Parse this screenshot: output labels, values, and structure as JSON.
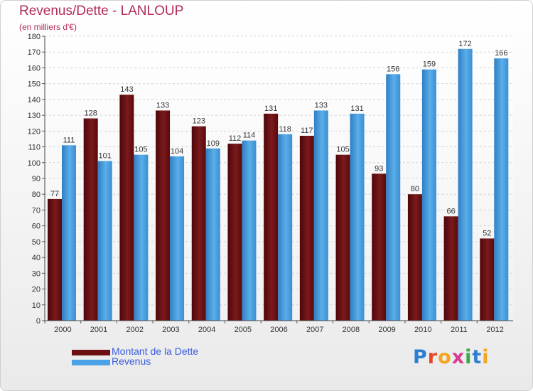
{
  "header": {
    "title": "Revenus/Dette - LANLOUP",
    "subtitle": "(en milliers d'€)"
  },
  "legend": [
    {
      "label": "Montant de la Dette",
      "color": "#6b0f12"
    },
    {
      "label": "Revenus",
      "color": "#4aa3e6"
    }
  ],
  "logo": {
    "text": "Proxiti",
    "letter_colors": [
      "#2f7fd0",
      "#e8462b",
      "#f4a41e",
      "#d93b8f",
      "#39a848",
      "#2f7fd0",
      "#f4a41e"
    ]
  },
  "chart_data": {
    "type": "bar",
    "title": "Revenus/Dette - LANLOUP",
    "subtitle": "(en milliers d'€)",
    "categories": [
      "2000",
      "2001",
      "2002",
      "2003",
      "2004",
      "2005",
      "2006",
      "2007",
      "2008",
      "2009",
      "2010",
      "2011",
      "2012"
    ],
    "series": [
      {
        "name": "Montant de la Dette",
        "color": "#6b0f12",
        "values": [
          77,
          128,
          143,
          133,
          123,
          112,
          131,
          117,
          105,
          93,
          80,
          66,
          52
        ]
      },
      {
        "name": "Revenus",
        "color": "#4aa3e6",
        "values": [
          111,
          101,
          105,
          104,
          109,
          114,
          118,
          133,
          131,
          156,
          159,
          172,
          166
        ]
      }
    ],
    "ylim": [
      0,
      180
    ],
    "yticks": [
      0,
      10,
      20,
      30,
      40,
      50,
      60,
      70,
      80,
      90,
      100,
      110,
      120,
      130,
      140,
      150,
      160,
      170,
      180
    ],
    "grid": true,
    "data_labels": true,
    "legend_position": "bottom-left"
  }
}
